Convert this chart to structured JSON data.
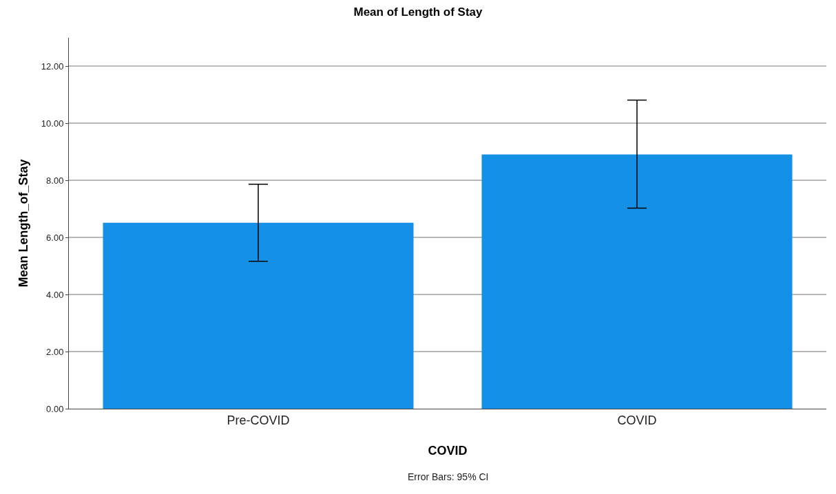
{
  "chart_data": {
    "type": "bar",
    "title": "Mean of Length of Stay",
    "xlabel": "COVID",
    "ylabel": "Mean Length_of_Stay",
    "categories": [
      "Pre-COVID",
      "COVID"
    ],
    "values": [
      6.52,
      8.91
    ],
    "errors": [
      [
        5.17,
        7.87
      ],
      [
        7.03,
        10.82
      ]
    ],
    "color": "#1490e6",
    "ylim": [
      0,
      13
    ],
    "yticks": [
      {
        "value": 0,
        "label": "0.00"
      },
      {
        "value": 2,
        "label": "2.00"
      },
      {
        "value": 4,
        "label": "4.00"
      },
      {
        "value": 6,
        "label": "6.00"
      },
      {
        "value": 8,
        "label": "8.00"
      },
      {
        "value": 10,
        "label": "10.00"
      },
      {
        "value": 12,
        "label": "12.00"
      }
    ],
    "grid": "y",
    "annotations": [
      "Error Bars: 95% CI"
    ]
  }
}
